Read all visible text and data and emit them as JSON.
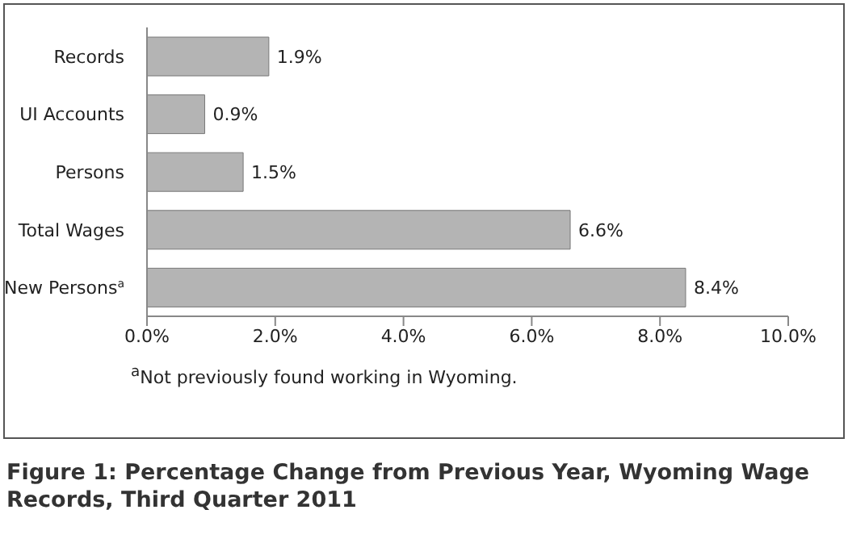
{
  "chart_data": {
    "type": "bar",
    "orientation": "horizontal",
    "title": "Figure 1: Percentage Change from Previous Year, Wyoming Wage Records, Third Quarter 2011",
    "categories": [
      "Records",
      "UI Accounts",
      "Persons",
      "Total Wages",
      "New Persons$^{a}$"
    ],
    "values": [
      1.9,
      0.9,
      1.5,
      6.6,
      8.4
    ],
    "color": "#b4b4b4",
    "value_labels": [
      "1.9%",
      "0.9%",
      "1.5%",
      "6.6%",
      "8.4%"
    ],
    "xlim": [
      0,
      10
    ],
    "xticks": [
      {
        "value": 0,
        "label": "0.0%"
      },
      {
        "value": 2,
        "label": "2.0%"
      },
      {
        "value": 4,
        "label": "4.0%"
      },
      {
        "value": 6,
        "label": "6.0%"
      },
      {
        "value": 8,
        "label": "8.0%"
      },
      {
        "value": 10,
        "label": "10.0%"
      }
    ],
    "grid": false,
    "legend": false,
    "annotations": [
      "$^{a}$Not previously found working in Wyoming."
    ]
  }
}
